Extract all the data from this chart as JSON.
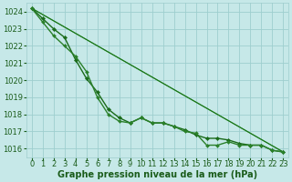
{
  "line1": {
    "x": [
      0,
      1,
      2,
      3,
      4,
      5,
      6,
      7,
      8,
      9,
      10,
      11,
      12,
      13,
      14,
      15,
      16,
      17,
      18,
      19,
      20,
      21,
      22,
      23
    ],
    "y": [
      1024.2,
      1023.6,
      1023.0,
      1022.5,
      1021.2,
      1020.1,
      1019.3,
      1018.3,
      1017.8,
      1017.5,
      1017.8,
      1017.5,
      1017.5,
      1017.3,
      1017.1,
      1016.8,
      1016.6,
      1016.6,
      1016.5,
      1016.3,
      1016.2,
      1016.2,
      1015.9,
      1015.8
    ],
    "color": "#1a6b1a",
    "linewidth": 1.0,
    "marker": "D",
    "markersize": 2.2
  },
  "line2": {
    "x": [
      0,
      1,
      2,
      3,
      4,
      5,
      6,
      7,
      8,
      9,
      10,
      11,
      12,
      13,
      14,
      15,
      16,
      17,
      18,
      19,
      20,
      21,
      22,
      23
    ],
    "y": [
      1024.2,
      1023.4,
      1022.6,
      1022.0,
      1021.4,
      1020.5,
      1019.0,
      1018.0,
      1017.6,
      1017.5,
      1017.8,
      1017.5,
      1017.5,
      1017.3,
      1017.0,
      1016.9,
      1016.2,
      1016.2,
      1016.4,
      1016.2,
      1016.2,
      1016.2,
      1015.9,
      1015.8
    ],
    "color": "#2a802a",
    "linewidth": 1.0,
    "marker": "D",
    "markersize": 2.0
  },
  "line3": {
    "x": [
      0,
      23
    ],
    "y": [
      1024.2,
      1015.8
    ],
    "color": "#3aaa3a",
    "linewidth": 0.9,
    "marker": null,
    "markersize": 0
  },
  "line4": {
    "x": [
      0,
      23
    ],
    "y": [
      1024.2,
      1015.8
    ],
    "color": "#1a6b1a",
    "linewidth": 0.7,
    "marker": null,
    "markersize": 0
  },
  "bg_color": "#c6e8e8",
  "grid_color": "#9ecece",
  "line_color": "#1a5c1a",
  "xlabel": "Graphe pression niveau de la mer (hPa)",
  "xlim": [
    -0.5,
    23.5
  ],
  "ylim": [
    1015.5,
    1024.5
  ],
  "xticks": [
    0,
    1,
    2,
    3,
    4,
    5,
    6,
    7,
    8,
    9,
    10,
    11,
    12,
    13,
    14,
    15,
    16,
    17,
    18,
    19,
    20,
    21,
    22,
    23
  ],
  "yticks": [
    1016,
    1017,
    1018,
    1019,
    1020,
    1021,
    1022,
    1023,
    1024
  ],
  "xlabel_fontsize": 7.0,
  "tick_fontsize": 6.0
}
